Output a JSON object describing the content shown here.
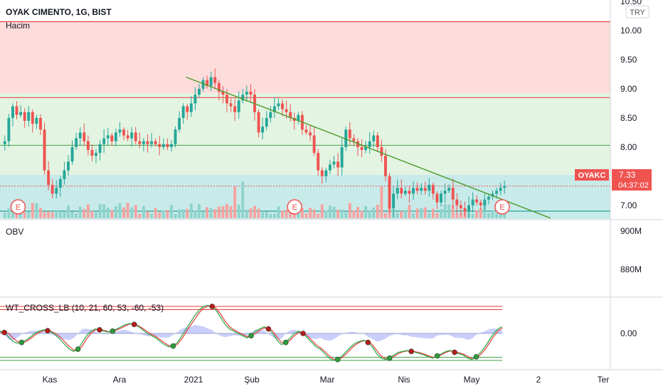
{
  "header": {
    "symbol_title": "OYAK CIMENTO, 1G, BIST",
    "volume_label": "Hacim",
    "currency": "TRY"
  },
  "price_badge": {
    "ticker": "OYAKC",
    "price": "7.33",
    "countdown": "04:37:02"
  },
  "obv_panel": {
    "label": "OBV",
    "ticks": [
      "900M",
      "880M"
    ]
  },
  "wt_panel": {
    "label": "WT_CROSS_LB (10, 21, 60, 53, -60, -53)",
    "ticks": [
      "0.00"
    ]
  },
  "colors": {
    "up": "#26a69a",
    "down": "#ef5350",
    "overbought_zone": "#fddcdc",
    "middle_zone": "#e3f4e3",
    "volume_zone": "#c8ebea",
    "trendline": "#4c9a2a",
    "wt1": "#26a644",
    "wt2": "#e53935",
    "histogram": "#9fa8f5",
    "earnings": "#ef5350"
  },
  "x_axis_labels": [
    "Kas",
    "Ara",
    "2021",
    "Şub",
    "Mar",
    "Nis",
    "May",
    "2",
    "Ter"
  ],
  "earnings_marker": "E",
  "chart_data": [
    {
      "type": "candlestick",
      "title": "OYAK CIMENTO, 1G, BIST",
      "currency": "TRY",
      "y_ticks": [
        "10.50",
        "10.00",
        "9.50",
        "9.00",
        "8.50",
        "8.00",
        "7.50",
        "7.00"
      ],
      "ylim": [
        6.9,
        10.5
      ],
      "last_price": 7.33,
      "horizontal_levels": [
        10.15,
        8.85,
        8.03,
        7.33,
        6.9
      ],
      "trendline": {
        "from": {
          "x": "2021-01-06",
          "y": 9.2
        },
        "to": {
          "x": "2021-05-27",
          "y": 6.78
        }
      },
      "earnings_events": [
        "2020-11-02",
        "2021-02-17",
        "2021-05-10"
      ],
      "series": [
        {
          "c": 8.1
        },
        {
          "c": 8.5
        },
        {
          "c": 8.7
        },
        {
          "c": 8.55
        },
        {
          "c": 8.6
        },
        {
          "c": 8.45
        },
        {
          "c": 8.6
        },
        {
          "c": 8.4
        },
        {
          "c": 8.5
        },
        {
          "c": 8.3
        },
        {
          "c": 7.6
        },
        {
          "c": 7.35
        },
        {
          "c": 7.2
        },
        {
          "c": 7.3
        },
        {
          "c": 7.45
        },
        {
          "c": 7.6
        },
        {
          "c": 7.75
        },
        {
          "c": 8.0
        },
        {
          "c": 8.15
        },
        {
          "c": 8.25
        },
        {
          "c": 8.1
        },
        {
          "c": 7.95
        },
        {
          "c": 7.85
        },
        {
          "c": 7.9
        },
        {
          "c": 8.05
        },
        {
          "c": 8.15
        },
        {
          "c": 8.2
        },
        {
          "c": 8.1
        },
        {
          "c": 8.25
        },
        {
          "c": 8.3
        },
        {
          "c": 8.2
        },
        {
          "c": 8.15
        },
        {
          "c": 8.25
        },
        {
          "c": 8.1
        },
        {
          "c": 8.05
        },
        {
          "c": 8.1
        },
        {
          "c": 8.05
        },
        {
          "c": 8.1
        },
        {
          "c": 8.05
        },
        {
          "c": 8.0
        },
        {
          "c": 8.05
        },
        {
          "c": 8.0
        },
        {
          "c": 8.05
        },
        {
          "c": 8.3
        },
        {
          "c": 8.5
        },
        {
          "c": 8.7
        },
        {
          "c": 8.6
        },
        {
          "c": 8.75
        },
        {
          "c": 8.9
        },
        {
          "c": 9.0
        },
        {
          "c": 9.15
        },
        {
          "c": 9.05
        },
        {
          "c": 9.2
        },
        {
          "c": 9.1
        },
        {
          "c": 8.95
        },
        {
          "c": 8.9
        },
        {
          "c": 8.75
        },
        {
          "c": 8.7
        },
        {
          "c": 8.6
        },
        {
          "c": 8.8
        },
        {
          "c": 8.9
        },
        {
          "c": 8.95
        },
        {
          "c": 8.9
        },
        {
          "c": 8.6
        },
        {
          "c": 8.25
        },
        {
          "c": 8.35
        },
        {
          "c": 8.5
        },
        {
          "c": 8.6
        },
        {
          "c": 8.7
        },
        {
          "c": 8.75
        },
        {
          "c": 8.65
        },
        {
          "c": 8.6
        },
        {
          "c": 8.5
        },
        {
          "c": 8.45
        },
        {
          "c": 8.55
        },
        {
          "c": 8.3
        },
        {
          "c": 8.25
        },
        {
          "c": 8.2
        },
        {
          "c": 7.9
        },
        {
          "c": 7.6
        },
        {
          "c": 7.5
        },
        {
          "c": 7.6
        },
        {
          "c": 7.7
        },
        {
          "c": 7.75
        },
        {
          "c": 7.65
        },
        {
          "c": 8.0
        },
        {
          "c": 8.3
        },
        {
          "c": 8.15
        },
        {
          "c": 8.1
        },
        {
          "c": 8.0
        },
        {
          "c": 7.95
        },
        {
          "c": 8.0
        },
        {
          "c": 8.1
        },
        {
          "c": 8.2
        },
        {
          "c": 8.0
        },
        {
          "c": 7.85
        },
        {
          "c": 7.5
        },
        {
          "c": 6.95
        },
        {
          "c": 7.2
        },
        {
          "c": 7.3
        },
        {
          "c": 7.2
        },
        {
          "c": 7.25
        },
        {
          "c": 7.2
        },
        {
          "c": 7.3
        },
        {
          "c": 7.25
        },
        {
          "c": 7.3
        },
        {
          "c": 7.25
        },
        {
          "c": 7.35
        },
        {
          "c": 7.2
        },
        {
          "c": 7.05
        },
        {
          "c": 7.2
        },
        {
          "c": 7.25
        },
        {
          "c": 7.3
        },
        {
          "c": 7.1
        },
        {
          "c": 7.0
        },
        {
          "c": 6.95
        },
        {
          "c": 6.9
        },
        {
          "c": 7.0
        },
        {
          "c": 7.1
        },
        {
          "c": 7.05
        },
        {
          "c": 7.0
        },
        {
          "c": 7.1
        },
        {
          "c": 7.15
        },
        {
          "c": 7.2
        },
        {
          "c": 7.25
        },
        {
          "c": 7.3
        },
        {
          "c": 7.33
        }
      ]
    },
    {
      "type": "line",
      "title": "OBV",
      "y_ticks": [
        "900M",
        "880M"
      ],
      "series": []
    },
    {
      "type": "line",
      "title": "WT_CROSS_LB (10, 21, 60, 53, -60, -53)",
      "y_ticks": [
        "0.00"
      ],
      "levels": [
        60,
        53,
        -53,
        -60
      ],
      "ylim": [
        -68,
        68
      ],
      "series": [
        {
          "name": "",
          "values": [
            5,
            2,
            -8,
            -18,
            -22,
            -20,
            -15,
            -8,
            0,
            5,
            8,
            6,
            2,
            -5,
            -15,
            -25,
            -35,
            -40,
            -35,
            -20,
            -5,
            5,
            10,
            8,
            5,
            3,
            5,
            10,
            15,
            20,
            22,
            20,
            15,
            8,
            0,
            -5,
            -10,
            -18,
            -25,
            -30,
            -28,
            -20,
            -5,
            10,
            25,
            40,
            52,
            60,
            62,
            60,
            50,
            35,
            20,
            10,
            5,
            0,
            -5,
            -10,
            -5,
            5,
            10,
            15,
            10,
            0,
            -15,
            -25,
            -20,
            -10,
            0,
            5,
            0,
            -10,
            -20,
            -30,
            -35,
            -45,
            -55,
            -60,
            -58,
            -50,
            -40,
            -30,
            -22,
            -18,
            -15,
            -20,
            -30,
            -45,
            -55,
            -58,
            -55,
            -48,
            -42,
            -40,
            -38,
            -40,
            -42,
            -45,
            -48,
            -52,
            -55,
            -50,
            -45,
            -40,
            -38,
            -42,
            -45,
            -48,
            -55,
            -58,
            -52,
            -42,
            -30,
            -15,
            0,
            10,
            15
          ]
        },
        {
          "name": "",
          "values": [
            3,
            4,
            0,
            -10,
            -18,
            -21,
            -18,
            -12,
            -4,
            2,
            6,
            7,
            4,
            -1,
            -9,
            -19,
            -29,
            -37,
            -38,
            -28,
            -12,
            0,
            8,
            9,
            7,
            4,
            4,
            8,
            12,
            17,
            21,
            21,
            17,
            11,
            4,
            -2,
            -7,
            -14,
            -21,
            -27,
            -29,
            -24,
            -12,
            3,
            18,
            32,
            46,
            56,
            61,
            61,
            55,
            42,
            27,
            15,
            8,
            3,
            -2,
            -7,
            -7,
            0,
            7,
            12,
            12,
            5,
            -8,
            -20,
            -22,
            -15,
            -5,
            2,
            2,
            -5,
            -15,
            -25,
            -32,
            -40,
            -50,
            -57,
            -59,
            -54,
            -45,
            -35,
            -26,
            -20,
            -16,
            -17,
            -25,
            -38,
            -50,
            -56,
            -57,
            -51,
            -45,
            -41,
            -39,
            -39,
            -41,
            -43,
            -46,
            -50,
            -53,
            -52,
            -47,
            -42,
            -39,
            -40,
            -43,
            -46,
            -51,
            -56,
            -55,
            -47,
            -36,
            -22,
            -7,
            5,
            12
          ]
        }
      ]
    }
  ]
}
